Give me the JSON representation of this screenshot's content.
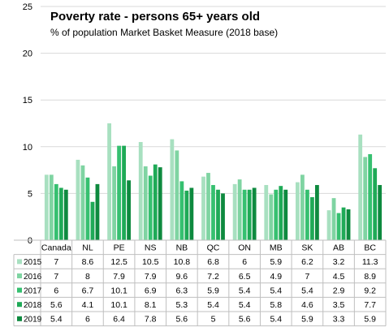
{
  "chart_data": {
    "type": "bar",
    "title": "Poverty rate - persons 65+ years old",
    "subtitle": "% of population Market Basket Measure (2018 base)",
    "ylim": [
      0,
      25
    ],
    "yticks": [
      0,
      5,
      10,
      15,
      20,
      25
    ],
    "grid": true,
    "legend": "data-table",
    "categories": [
      "Canada",
      "NL",
      "PE",
      "NS",
      "NB",
      "QC",
      "ON",
      "MB",
      "SK",
      "AB",
      "BC"
    ],
    "series": [
      {
        "name": "2015",
        "color": "#a8e0c0",
        "values": [
          7,
          8.6,
          12.5,
          10.5,
          10.8,
          6.8,
          6,
          5.9,
          6.2,
          3.2,
          11.3
        ]
      },
      {
        "name": "2016",
        "color": "#7fd4a2",
        "values": [
          7,
          8,
          7.9,
          7.9,
          9.6,
          7.2,
          6.5,
          4.9,
          7,
          4.5,
          8.9
        ]
      },
      {
        "name": "2017",
        "color": "#36c070",
        "values": [
          6,
          6.7,
          10.1,
          6.9,
          6.3,
          5.9,
          5.4,
          5.4,
          5.4,
          2.9,
          9.2
        ]
      },
      {
        "name": "2018",
        "color": "#1faa57",
        "values": [
          5.6,
          4.1,
          10.1,
          8.1,
          5.3,
          5.4,
          5.4,
          5.8,
          4.6,
          3.5,
          7.7
        ]
      },
      {
        "name": "2019",
        "color": "#0e8a3f",
        "values": [
          5.4,
          6,
          6.4,
          7.8,
          5.6,
          5,
          5.6,
          5.4,
          5.9,
          3.3,
          5.9
        ]
      }
    ]
  }
}
